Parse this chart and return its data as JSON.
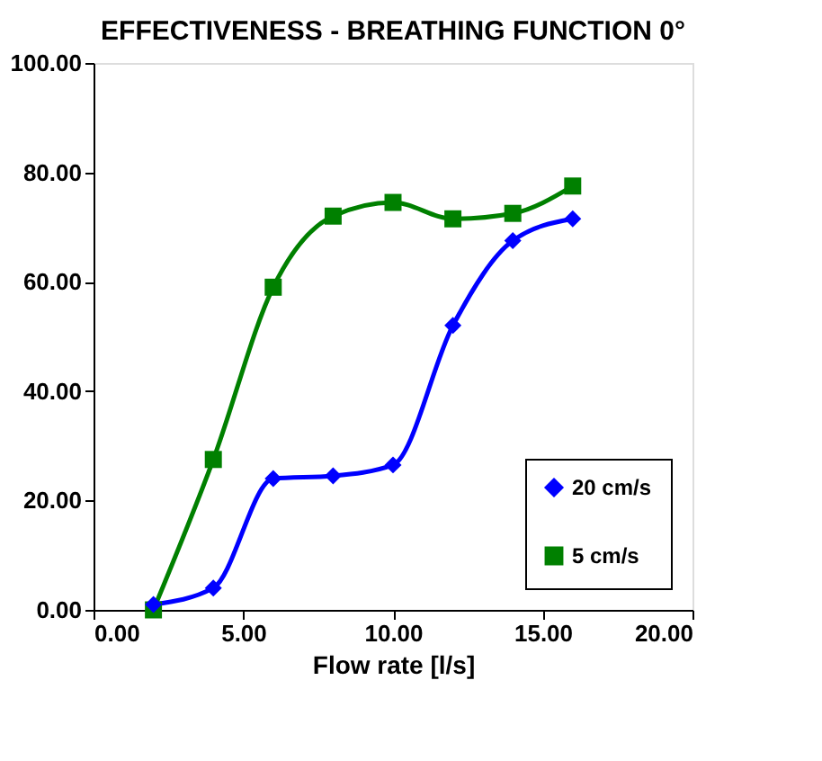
{
  "chart_data": {
    "type": "line",
    "title": "EFFECTIVENESS - BREATHING FUNCTION 0°",
    "xlabel": "Flow rate [l/s]",
    "x": [
      2,
      4,
      6,
      8,
      10,
      12,
      14,
      16
    ],
    "series": [
      {
        "name": "20 cm/s",
        "color": "#0000ff",
        "marker": "diamond",
        "values": [
          1,
          4,
          24,
          24.5,
          26.5,
          52,
          67.5,
          71.5
        ]
      },
      {
        "name": "5 cm/s",
        "color": "#008000",
        "marker": "square",
        "values": [
          0,
          27.5,
          59,
          72,
          74.5,
          71.5,
          72.5,
          77.5
        ]
      }
    ],
    "xlim": [
      0,
      20
    ],
    "ylim": [
      0,
      100
    ],
    "xticks": [
      {
        "value": 0,
        "label": "0.00"
      },
      {
        "value": 5,
        "label": "5.00"
      },
      {
        "value": 10,
        "label": "10.00"
      },
      {
        "value": 15,
        "label": "15.00"
      },
      {
        "value": 20,
        "label": "20.00"
      }
    ],
    "yticks": [
      {
        "value": 0,
        "label": "0.00"
      },
      {
        "value": 20,
        "label": "20.00"
      },
      {
        "value": 40,
        "label": "40.00"
      },
      {
        "value": 60,
        "label": "60.00"
      },
      {
        "value": 80,
        "label": "80.00"
      },
      {
        "value": 100,
        "label": "100.00"
      }
    ],
    "grid": false,
    "legend": "bottom right",
    "line_style": "solid"
  }
}
